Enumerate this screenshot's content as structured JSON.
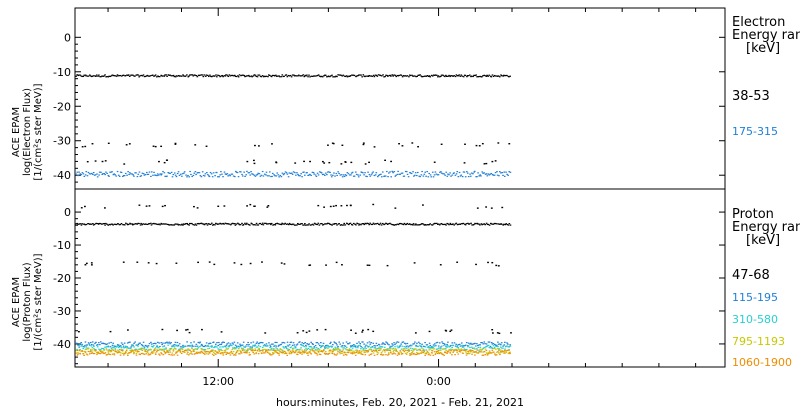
{
  "chart_data": {
    "type": "scatter",
    "xlabel": "hours:minutes, Feb. 20, 2021 - Feb. 21, 2021",
    "x_range_hours": [
      -19.8,
      15.6
    ],
    "x_ticks": [
      {
        "label": "12:00",
        "value": -12
      },
      {
        "label": "0:00",
        "value": 0
      }
    ],
    "x_minor_ticks": [
      -18,
      -16,
      -14,
      -10,
      -8,
      -6,
      -4,
      -2,
      2,
      4,
      6,
      8,
      10,
      12,
      14
    ],
    "data_end_hours": 3.9,
    "panels": [
      {
        "ylabel_lines": [
          "ACE EPAM",
          "log(Electron Flux)",
          "[1/(cm²s ster MeV)]"
        ],
        "ylim": [
          -44,
          8.5
        ],
        "yticks": [
          0,
          -10,
          -20,
          -30,
          -40
        ],
        "title_lines": [
          "Electron",
          "Energy range",
          "[keV]"
        ],
        "series": [
          {
            "name": "38-53",
            "color": "#000000",
            "level": -11,
            "sparse": [
              -31,
              -36
            ]
          },
          {
            "name": "175-315",
            "color": "#1f7fd6",
            "level": -39.5,
            "sparse": []
          }
        ]
      },
      {
        "ylabel_lines": [
          "ACE EPAM",
          "log(Proton Flux)",
          "[1/(cm²s ster MeV)]"
        ],
        "ylim": [
          -47,
          7
        ],
        "yticks": [
          0,
          -10,
          -20,
          -30,
          -40
        ],
        "title_lines": [
          "Proton",
          "Energy range",
          "[keV]"
        ],
        "series": [
          {
            "name": "47-68",
            "color": "#000000",
            "level": -3.5,
            "sparse": [
              -15.5,
              -36,
              2
            ]
          },
          {
            "name": "115-195",
            "color": "#1f7fd6",
            "level": -40,
            "sparse": []
          },
          {
            "name": "310-580",
            "color": "#26d0d0",
            "level": -41,
            "sparse": []
          },
          {
            "name": "795-1193",
            "color": "#c8c800",
            "level": -42,
            "sparse": []
          },
          {
            "name": "1060-1900",
            "color": "#f08c00",
            "level": -42.5,
            "sparse": []
          }
        ]
      }
    ]
  }
}
